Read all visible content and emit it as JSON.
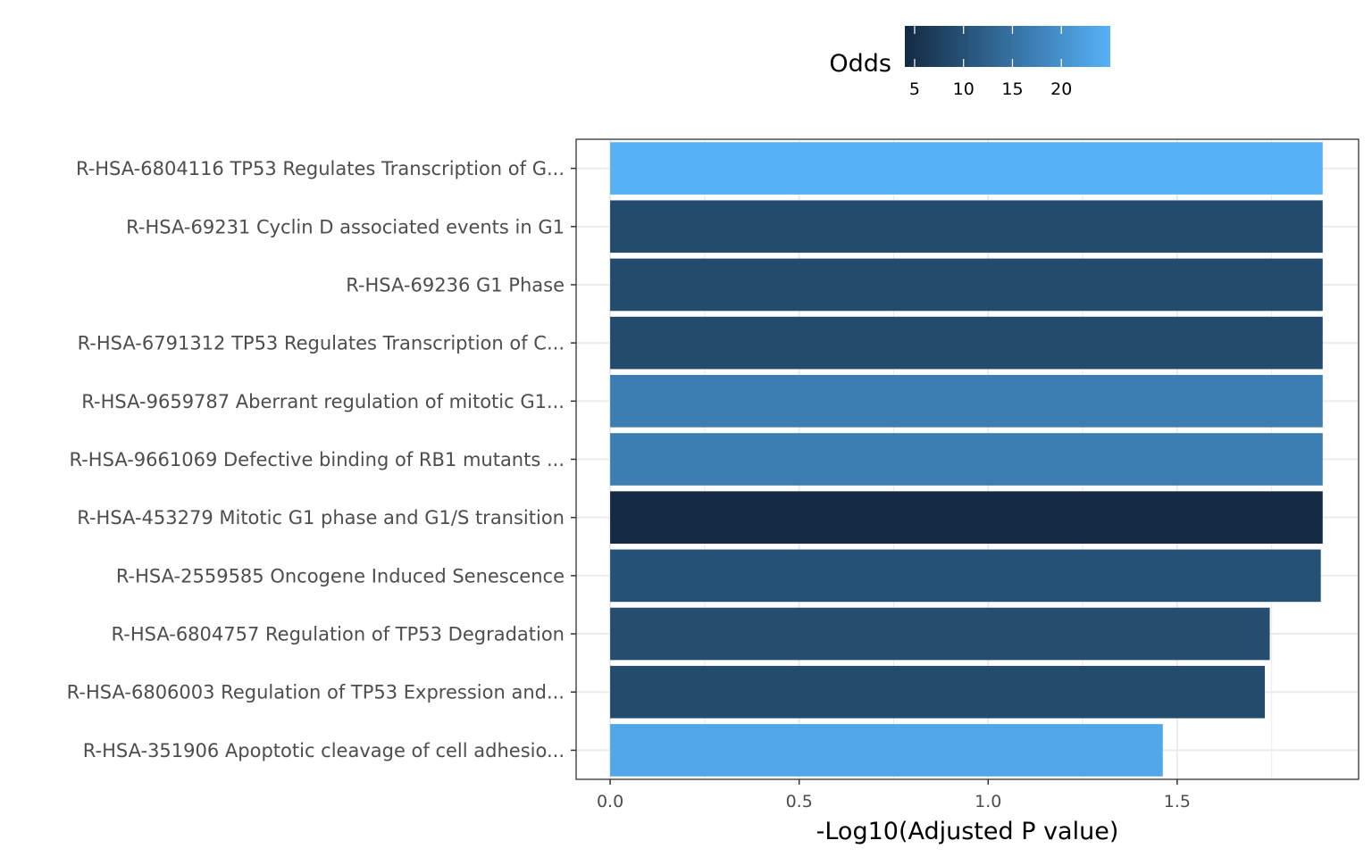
{
  "chart_data": {
    "type": "bar",
    "orientation": "horizontal",
    "categories": [
      "R-HSA-6804116 TP53 Regulates Transcription of G...",
      "R-HSA-69231 Cyclin D associated events in G1",
      "R-HSA-69236 G1 Phase",
      "R-HSA-6791312 TP53 Regulates Transcription of C...",
      "R-HSA-9659787 Aberrant regulation of mitotic G1...",
      "R-HSA-9661069 Defective binding of RB1 mutants ...",
      "R-HSA-453279 Mitotic G1 phase and G1/S transition",
      "R-HSA-2559585 Oncogene Induced Senescence",
      "R-HSA-6804757 Regulation of TP53 Degradation",
      "R-HSA-6806003 Regulation of TP53 Expression and...",
      "R-HSA-351906 Apoptotic cleavage of cell adhesio..."
    ],
    "values": [
      1.885,
      1.885,
      1.885,
      1.885,
      1.885,
      1.885,
      1.885,
      1.88,
      1.745,
      1.732,
      1.462
    ],
    "color_values": [
      25.0,
      9.0,
      9.0,
      9.0,
      17.0,
      17.0,
      4.0,
      10.0,
      9.3,
      9.0,
      23.5
    ],
    "xlabel": "-Log10(Adjusted P value)",
    "ylabel": "",
    "xlim": [
      -0.09,
      1.98
    ],
    "xticks": [
      0.0,
      0.5,
      1.0,
      1.5
    ],
    "xtick_labels": [
      "0.0",
      "0.5",
      "1.0",
      "1.5"
    ],
    "grid": true,
    "legend": {
      "title": "Odds",
      "position": "top",
      "type": "colorbar",
      "range": [
        4.0,
        25.0
      ],
      "ticks": [
        5,
        10,
        15,
        20
      ],
      "tick_labels": [
        "5",
        "10",
        "15",
        "20"
      ],
      "low_color": "#132b43",
      "high_color": "#56b1f7"
    }
  }
}
